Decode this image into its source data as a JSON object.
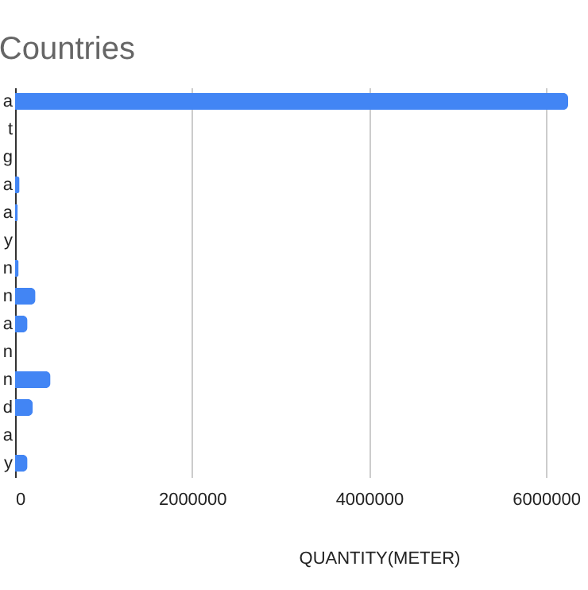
{
  "chart_data": {
    "type": "bar",
    "orientation": "horizontal",
    "title": "Countries",
    "xlabel": "QUANTITY(METER)",
    "categories": [
      "a",
      "t",
      "g",
      "a",
      "a",
      "y",
      "n",
      "n",
      "a",
      "n",
      "n",
      "d",
      "a",
      "y"
    ],
    "values": [
      6250000,
      0,
      0,
      50000,
      30000,
      0,
      40000,
      230000,
      140000,
      0,
      400000,
      200000,
      0,
      140000
    ],
    "color": "#4285f4",
    "xlim": [
      0,
      6250000
    ],
    "xticks": [
      0,
      2000000,
      4000000,
      6000000
    ],
    "grid": "x"
  }
}
